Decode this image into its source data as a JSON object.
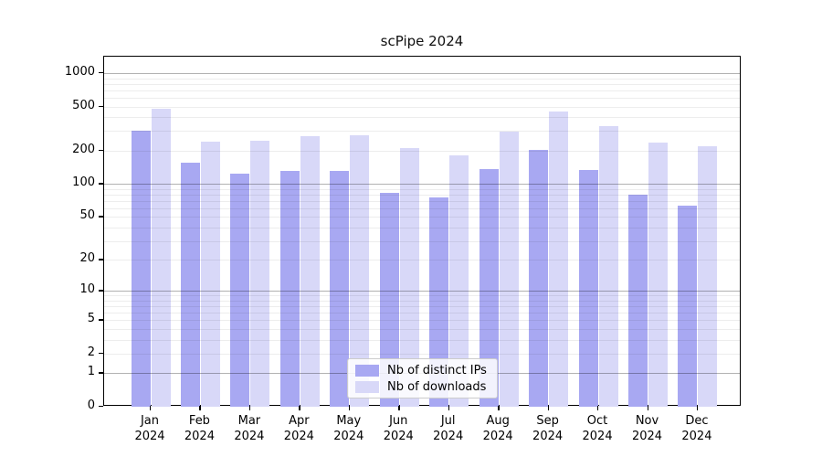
{
  "title": "scPipe 2024",
  "chart_data": {
    "type": "bar",
    "title": "scPipe 2024",
    "categories": [
      "Jan 2024",
      "Feb 2024",
      "Mar 2024",
      "Apr 2024",
      "May 2024",
      "Jun 2024",
      "Jul 2024",
      "Aug 2024",
      "Sep 2024",
      "Oct 2024",
      "Nov 2024",
      "Dec 2024"
    ],
    "series": [
      {
        "name": "Nb of distinct IPs",
        "color": "#a8a8f2",
        "values": [
          303,
          156,
          124,
          132,
          131,
          83,
          76,
          136,
          203,
          134,
          80,
          63
        ]
      },
      {
        "name": "Nb of downloads",
        "color": "#d8d8f8",
        "values": [
          478,
          241,
          246,
          272,
          277,
          212,
          182,
          297,
          448,
          335,
          237,
          218
        ]
      }
    ],
    "xlabel": "",
    "ylabel": "",
    "y_scale": "log1p",
    "y_ticks": [
      0,
      1,
      2,
      5,
      10,
      20,
      50,
      100,
      200,
      500,
      1000
    ],
    "ylim": [
      0,
      1400
    ],
    "grid": "on",
    "legend_position": "lower center",
    "grid_major_at": [
      1,
      10,
      100,
      1000
    ]
  }
}
